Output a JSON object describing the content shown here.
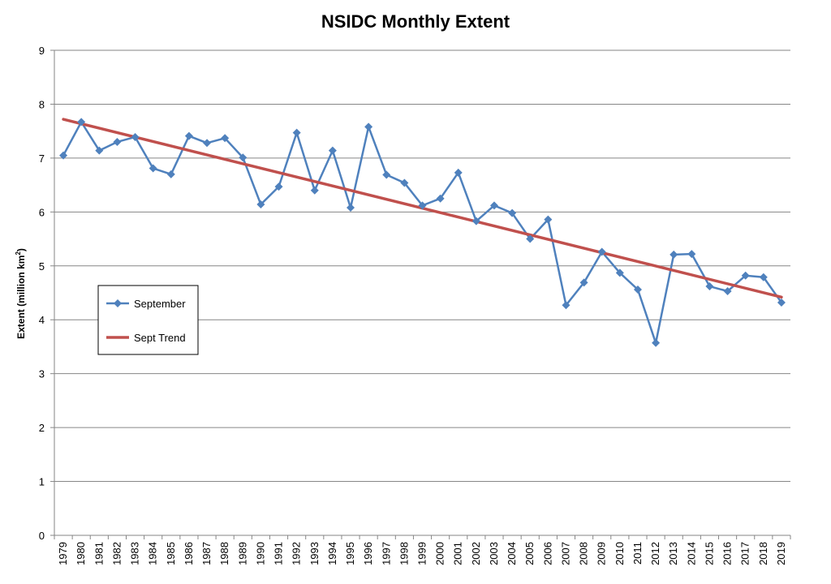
{
  "chart_data": {
    "type": "line",
    "title": "NSIDC Monthly Extent",
    "ylabel_main": "Extent (million km",
    "ylabel_sup": "2",
    "ylabel_close": ")",
    "xlabel": "",
    "ylim": [
      0,
      9
    ],
    "yticks": [
      0,
      1,
      2,
      3,
      4,
      5,
      6,
      7,
      8,
      9
    ],
    "grid": "horizontal",
    "legend_position": "left-middle",
    "categories": [
      "1979",
      "1980",
      "1981",
      "1982",
      "1983",
      "1984",
      "1985",
      "1986",
      "1987",
      "1988",
      "1989",
      "1990",
      "1991",
      "1992",
      "1993",
      "1994",
      "1995",
      "1996",
      "1997",
      "1998",
      "1999",
      "2000",
      "2001",
      "2002",
      "2003",
      "2004",
      "2005",
      "2006",
      "2007",
      "2008",
      "2009",
      "2010",
      "2011",
      "2012",
      "2013",
      "2014",
      "2015",
      "2016",
      "2017",
      "2018",
      "2019"
    ],
    "series": [
      {
        "name": "September",
        "color": "#4F81BD",
        "marker": "diamond",
        "values": [
          7.05,
          7.67,
          7.14,
          7.3,
          7.39,
          6.81,
          6.7,
          7.41,
          7.28,
          7.37,
          7.01,
          6.14,
          6.47,
          7.47,
          6.4,
          7.14,
          6.08,
          7.58,
          6.69,
          6.54,
          6.12,
          6.25,
          6.73,
          5.83,
          6.12,
          5.98,
          5.5,
          5.86,
          4.27,
          4.69,
          5.26,
          4.87,
          4.56,
          3.57,
          5.21,
          5.22,
          4.62,
          4.53,
          4.82,
          4.79,
          4.32
        ]
      },
      {
        "name": "Sept Trend",
        "color": "#C0504D",
        "marker": "none",
        "line_start": 7.72,
        "line_end": 4.42
      }
    ]
  }
}
